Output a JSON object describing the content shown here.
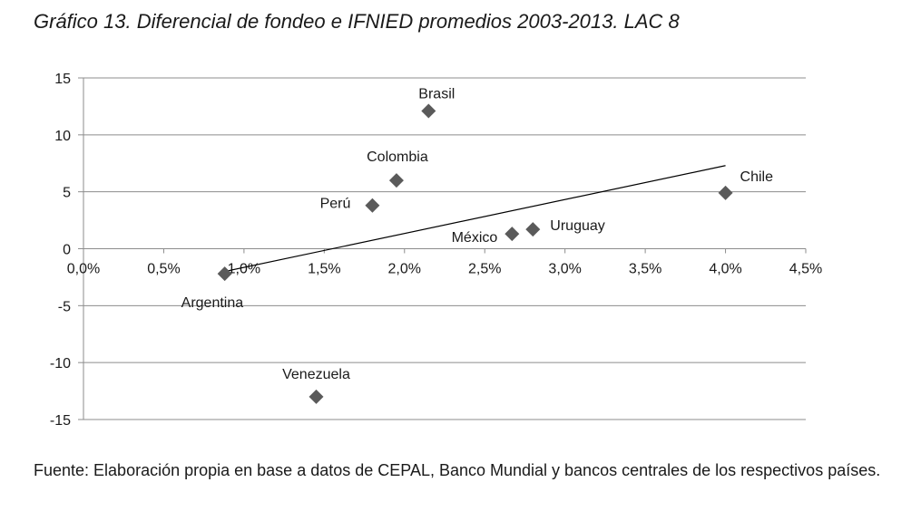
{
  "title": "Gráfico 13. Diferencial de fondeo e IFNIED promedios 2003-2013. LAC 8",
  "source": "Fuente: Elaboración propia en base a datos de CEPAL, Banco Mundial y bancos centrales de los respectivos países.",
  "chart_data": {
    "type": "scatter",
    "title": "Gráfico 13. Diferencial de fondeo e IFNIED promedios 2003-2013. LAC 8",
    "xlabel": "",
    "ylabel": "",
    "xlim": [
      0,
      4.5
    ],
    "ylim": [
      -15,
      15
    ],
    "x_ticks": [
      "0,0%",
      "0,5%",
      "1,0%",
      "1,5%",
      "2,0%",
      "2,5%",
      "3,0%",
      "3,5%",
      "4,0%",
      "4,5%"
    ],
    "y_ticks": [
      "15",
      "10",
      "5",
      "0",
      "-5",
      "-10",
      "-15"
    ],
    "grid": "horizontal",
    "marker": "diamond",
    "marker_color": "#5a5a5a",
    "points": [
      {
        "label": "Brasil",
        "x": 2.15,
        "y": 12.1
      },
      {
        "label": "Colombia",
        "x": 1.95,
        "y": 6.0
      },
      {
        "label": "Perú",
        "x": 1.8,
        "y": 3.8
      },
      {
        "label": "Chile",
        "x": 4.0,
        "y": 4.9
      },
      {
        "label": "Uruguay",
        "x": 2.8,
        "y": 1.7
      },
      {
        "label": "México",
        "x": 2.67,
        "y": 1.3
      },
      {
        "label": "Argentina",
        "x": 0.88,
        "y": -2.2
      },
      {
        "label": "Venezuela",
        "x": 1.45,
        "y": -13.0
      }
    ],
    "trendline": {
      "x": [
        0.88,
        4.0
      ],
      "y": [
        -2.0,
        7.3
      ]
    }
  }
}
